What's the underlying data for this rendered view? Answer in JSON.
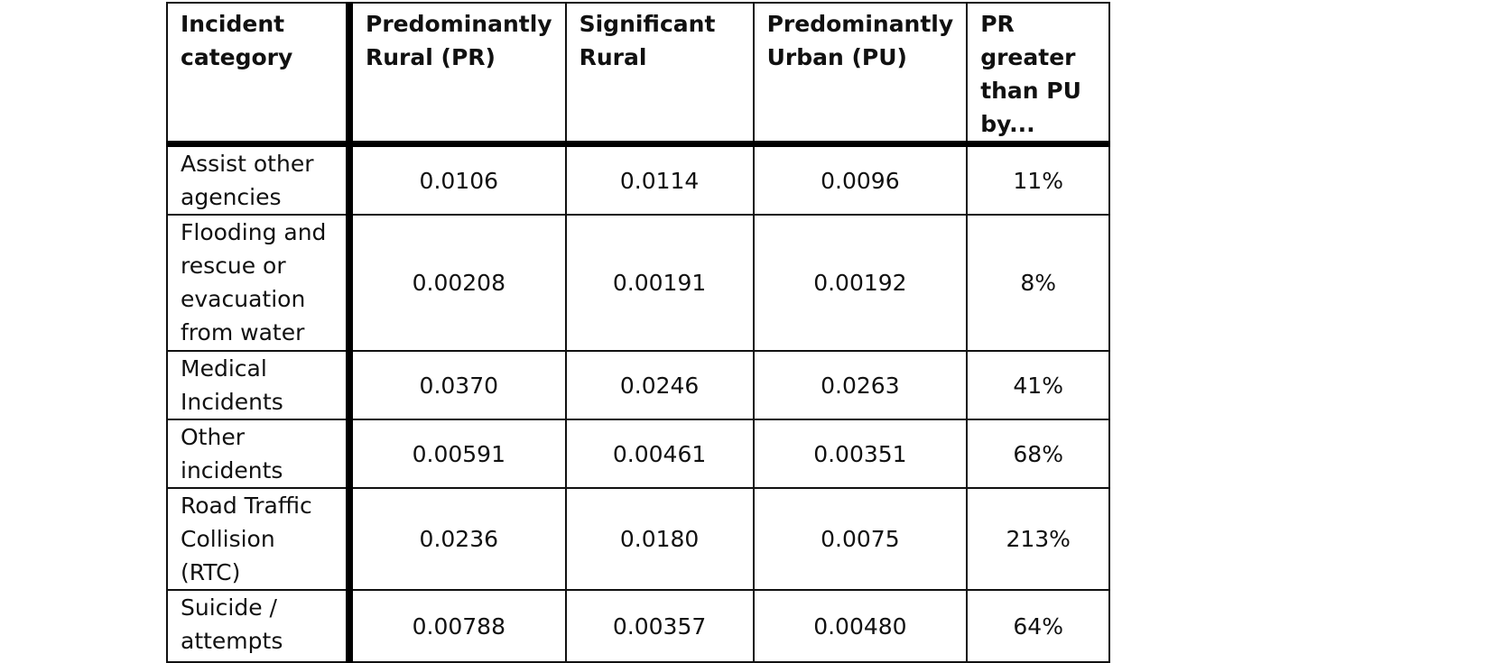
{
  "table": {
    "headers": [
      "Incident category",
      "Predominantly Rural (PR)",
      "Significant Rural",
      "Predominantly Urban (PU)",
      "PR greater than PU by..."
    ],
    "rows": [
      [
        "Assist other agencies",
        "0.0106",
        "0.0114",
        "0.0096",
        "11%"
      ],
      [
        "Flooding and rescue or evacuation from water",
        "0.00208",
        "0.00191",
        "0.00192",
        "8%"
      ],
      [
        "Medical Incidents",
        "0.0370",
        "0.0246",
        "0.0263",
        "41%"
      ],
      [
        "Other incidents",
        "0.00591",
        "0.00461",
        "0.00351",
        "68%"
      ],
      [
        "Road Traffic Collision (RTC)",
        "0.0236",
        "0.0180",
        "0.0075",
        "213%"
      ],
      [
        "Suicide / attempts",
        "0.00788",
        "0.00357",
        "0.00480",
        "64%"
      ]
    ]
  }
}
